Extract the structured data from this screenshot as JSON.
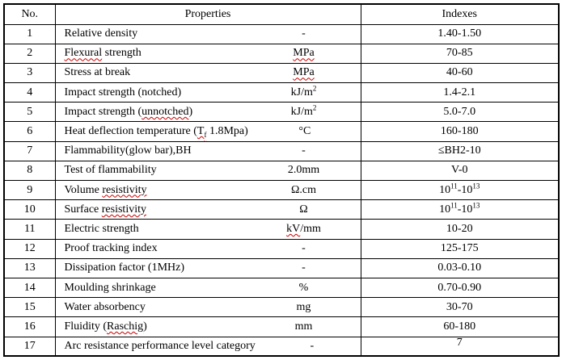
{
  "page": {
    "background": "#ffffff",
    "border_color": "#000000",
    "spellcheck_color": "#cc0000"
  },
  "table": {
    "headers": {
      "no": "No.",
      "properties": "Properties",
      "indexes": "Indexes"
    },
    "rows": [
      {
        "no": "1",
        "property": [
          {
            "t": "Relative density"
          }
        ],
        "unit": [
          {
            "t": "-"
          }
        ],
        "index": [
          {
            "t": "1.40-1.50"
          }
        ]
      },
      {
        "no": "2",
        "property": [
          {
            "t": "Flexural",
            "wavy": true
          },
          {
            "t": " strength"
          }
        ],
        "unit": [
          {
            "t": "MPa",
            "wavy": true
          }
        ],
        "index": [
          {
            "t": "70-85"
          }
        ]
      },
      {
        "no": "3",
        "property": [
          {
            "t": "Stress at break"
          }
        ],
        "unit": [
          {
            "t": "MPa",
            "wavy": true
          }
        ],
        "index": [
          {
            "t": "40-60"
          }
        ]
      },
      {
        "no": "4",
        "property": [
          {
            "t": "Impact strength (notched)"
          }
        ],
        "unit": [
          {
            "t": "kJ/m"
          },
          {
            "t": "2",
            "sup": true
          }
        ],
        "index": [
          {
            "t": "1.4-2.1"
          }
        ]
      },
      {
        "no": "5",
        "property": [
          {
            "t": "Impact strength ("
          },
          {
            "t": "unnotched",
            "wavy": true
          },
          {
            "t": ")"
          }
        ],
        "unit": [
          {
            "t": "kJ/m"
          },
          {
            "t": "2",
            "sup": true
          }
        ],
        "index": [
          {
            "t": "5.0-7.0"
          }
        ]
      },
      {
        "no": "6",
        "property": [
          {
            "t": "Heat deflection temperature ("
          },
          {
            "t": "T",
            "wavy": true
          },
          {
            "t": "f",
            "sub": true,
            "wavy": true
          },
          {
            "t": " 1.8Mpa)"
          }
        ],
        "unit": [
          {
            "t": "°C"
          }
        ],
        "index": [
          {
            "t": "160-180"
          }
        ]
      },
      {
        "no": "7",
        "property": [
          {
            "t": "Flammability(glow bar),BH"
          }
        ],
        "unit": [
          {
            "t": "-"
          }
        ],
        "index": [
          {
            "t": "≤BH2-10"
          }
        ]
      },
      {
        "no": "8",
        "property": [
          {
            "t": "Test of flammability"
          }
        ],
        "unit": [
          {
            "t": "2.0mm"
          }
        ],
        "index": [
          {
            "t": "V-0"
          }
        ]
      },
      {
        "no": "9",
        "property": [
          {
            "t": "Volume "
          },
          {
            "t": "resistivity",
            "wavy": true
          }
        ],
        "unit": [
          {
            "t": "Ω.cm"
          }
        ],
        "index": [
          {
            "t": "10"
          },
          {
            "t": "11",
            "sup": true
          },
          {
            "t": "-10"
          },
          {
            "t": "13",
            "sup": true
          }
        ]
      },
      {
        "no": "10",
        "property": [
          {
            "t": "Surface "
          },
          {
            "t": "resistivity",
            "wavy": true
          }
        ],
        "unit": [
          {
            "t": "Ω"
          }
        ],
        "index": [
          {
            "t": "10"
          },
          {
            "t": "11",
            "sup": true
          },
          {
            "t": "-10"
          },
          {
            "t": "13",
            "sup": true
          }
        ]
      },
      {
        "no": "11",
        "property": [
          {
            "t": "Electric strength"
          }
        ],
        "unit": [
          {
            "t": "kV",
            "wavy": true
          },
          {
            "t": "/mm"
          }
        ],
        "index": [
          {
            "t": "10-20"
          }
        ]
      },
      {
        "no": "12",
        "property": [
          {
            "t": "Proof tracking index"
          }
        ],
        "unit": [
          {
            "t": "-"
          }
        ],
        "index": [
          {
            "t": "125-175"
          }
        ]
      },
      {
        "no": "13",
        "property": [
          {
            "t": "Dissipation factor (1MHz)"
          }
        ],
        "unit": [
          {
            "t": "-"
          }
        ],
        "index": [
          {
            "t": "0.03-0.10"
          }
        ]
      },
      {
        "no": "14",
        "property": [
          {
            "t": "Moulding shrinkage"
          }
        ],
        "unit": [
          {
            "t": "%"
          }
        ],
        "index": [
          {
            "t": "0.70-0.90"
          }
        ]
      },
      {
        "no": "15",
        "property": [
          {
            "t": "Water absorbency"
          }
        ],
        "unit": [
          {
            "t": "mg"
          }
        ],
        "index": [
          {
            "t": "30-70"
          }
        ]
      },
      {
        "no": "16",
        "property": [
          {
            "t": "Fluidity ("
          },
          {
            "t": "Raschig",
            "wavy": true
          },
          {
            "t": ")"
          }
        ],
        "unit": [
          {
            "t": "mm"
          }
        ],
        "index": [
          {
            "t": "60-180"
          }
        ]
      },
      {
        "no": "17",
        "property": [
          {
            "t": "Arc resistance performance level category"
          }
        ],
        "unit": [
          {
            "t": "-"
          }
        ],
        "index": [
          {
            "t": "7"
          }
        ],
        "index_align": "top"
      }
    ]
  }
}
